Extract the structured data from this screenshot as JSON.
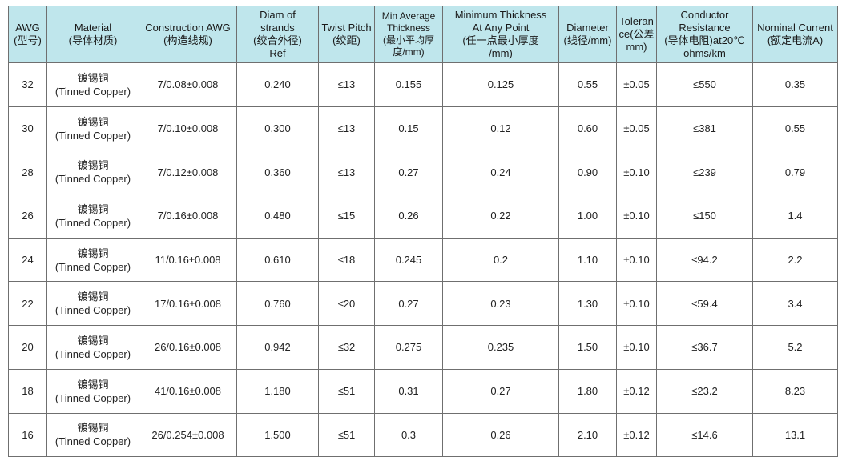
{
  "headers": [
    [
      "AWG",
      "(型号)"
    ],
    [
      "Material",
      "(导体材质)"
    ],
    [
      "Construction AWG",
      "(构造线规)"
    ],
    [
      "Diam of",
      "strands",
      "(绞合外径)",
      "Ref"
    ],
    [
      "Twist Pitch",
      "(绞距)"
    ],
    [
      "Min Average",
      "Thickness",
      "(最小平均厚",
      "度/mm)"
    ],
    [
      "Minimum Thickness",
      "At Any Point",
      "(任一点最小厚度",
      "/mm)"
    ],
    [
      "Diameter",
      "(线径/mm)"
    ],
    [
      "Toleran",
      "ce(公差",
      "mm)"
    ],
    [
      "Conductor",
      "Resistance",
      "(导体电阻)at20℃",
      "ohms/km"
    ],
    [
      "Nominal Current",
      "(额定电流A)"
    ]
  ],
  "material": [
    "镀锡铜",
    "(Tinned Copper)"
  ],
  "rows": [
    {
      "awg": "32",
      "construction": "7/0.08±0.008",
      "diam": "0.240",
      "pitch": "≤13",
      "min_avg": "0.155",
      "min_point": "0.125",
      "diameter": "0.55",
      "tolerance": "±0.05",
      "resistance": "≤550",
      "current": "0.35"
    },
    {
      "awg": "30",
      "construction": "7/0.10±0.008",
      "diam": "0.300",
      "pitch": "≤13",
      "min_avg": "0.15",
      "min_point": "0.12",
      "diameter": "0.60",
      "tolerance": "±0.05",
      "resistance": "≤381",
      "current": "0.55"
    },
    {
      "awg": "28",
      "construction": "7/0.12±0.008",
      "diam": "0.360",
      "pitch": "≤13",
      "min_avg": "0.27",
      "min_point": "0.24",
      "diameter": "0.90",
      "tolerance": "±0.10",
      "resistance": "≤239",
      "current": "0.79"
    },
    {
      "awg": "26",
      "construction": "7/0.16±0.008",
      "diam": "0.480",
      "pitch": "≤15",
      "min_avg": "0.26",
      "min_point": "0.22",
      "diameter": "1.00",
      "tolerance": "±0.10",
      "resistance": "≤150",
      "current": "1.4"
    },
    {
      "awg": "24",
      "construction": "11/0.16±0.008",
      "diam": "0.610",
      "pitch": "≤18",
      "min_avg": "0.245",
      "min_point": "0.2",
      "diameter": "1.10",
      "tolerance": "±0.10",
      "resistance": "≤94.2",
      "current": "2.2"
    },
    {
      "awg": "22",
      "construction": "17/0.16±0.008",
      "diam": "0.760",
      "pitch": "≤20",
      "min_avg": "0.27",
      "min_point": "0.23",
      "diameter": "1.30",
      "tolerance": "±0.10",
      "resistance": "≤59.4",
      "current": "3.4"
    },
    {
      "awg": "20",
      "construction": "26/0.16±0.008",
      "diam": "0.942",
      "pitch": "≤32",
      "min_avg": "0.275",
      "min_point": "0.235",
      "diameter": "1.50",
      "tolerance": "±0.10",
      "resistance": "≤36.7",
      "current": "5.2"
    },
    {
      "awg": "18",
      "construction": "41/0.16±0.008",
      "diam": "1.180",
      "pitch": "≤51",
      "min_avg": "0.31",
      "min_point": "0.27",
      "diameter": "1.80",
      "tolerance": "±0.12",
      "resistance": "≤23.2",
      "current": "8.23"
    },
    {
      "awg": "16",
      "construction": "26/0.254±0.008",
      "diam": "1.500",
      "pitch": "≤51",
      "min_avg": "0.3",
      "min_point": "0.26",
      "diameter": "2.10",
      "tolerance": "±0.12",
      "resistance": "≤14.6",
      "current": "13.1"
    }
  ]
}
